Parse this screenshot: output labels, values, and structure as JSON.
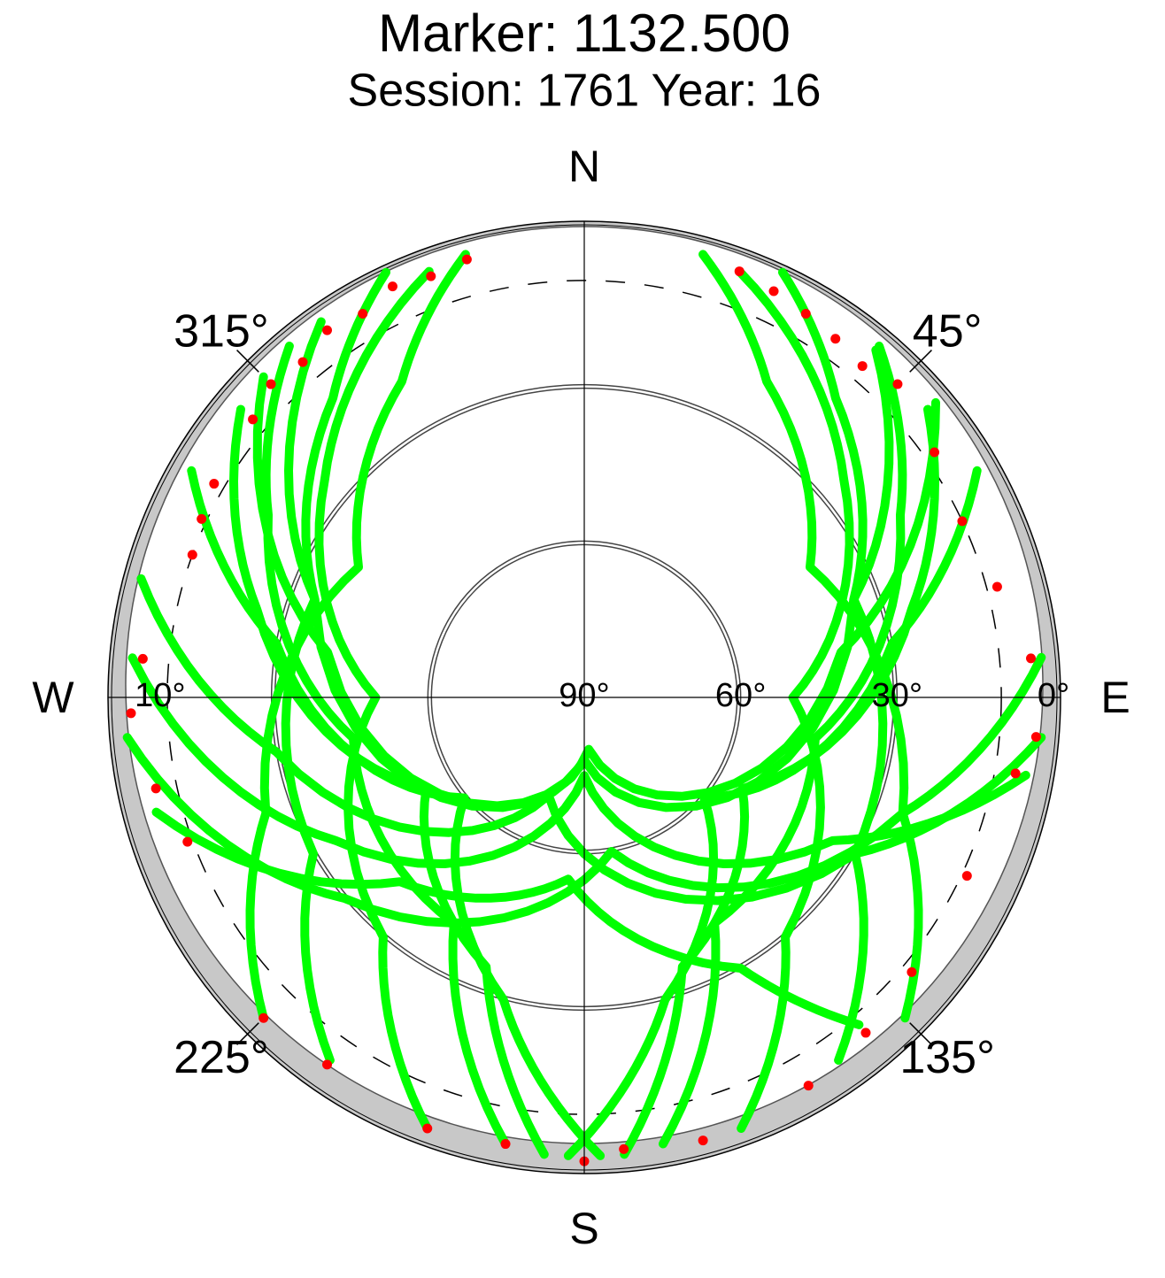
{
  "chart_data": {
    "type": "skyplot",
    "title": "Marker: 1132.500",
    "subtitle": "Session: 1761 Year: 16",
    "rlim": [
      90,
      0
    ],
    "rticks": [
      {
        "value": 0,
        "label": "0°"
      },
      {
        "value": 30,
        "label": "30°"
      },
      {
        "value": 60,
        "label": "60°"
      },
      {
        "value": 90,
        "label": "90°"
      }
    ],
    "cutoff": {
      "value": 10,
      "label": "10°"
    },
    "azticks": [
      {
        "value": 45,
        "label": "45°"
      },
      {
        "value": 135,
        "label": "135°"
      },
      {
        "value": 225,
        "label": "225°"
      },
      {
        "value": 315,
        "label": "315°"
      }
    ],
    "directions": [
      {
        "value": 0,
        "label": "N"
      },
      {
        "value": 90,
        "label": "E"
      },
      {
        "value": 180,
        "label": "S"
      },
      {
        "value": 270,
        "label": "W"
      }
    ],
    "track_color": "#00ff00",
    "series": [
      {
        "azimuth": [
          335,
          320,
          290,
          240,
          215
        ],
        "elevation": [
          0,
          15,
          35,
          30,
          5
        ]
      },
      {
        "azimuth": [
          345,
          330,
          300,
          250,
          225
        ],
        "elevation": [
          2,
          20,
          40,
          25,
          3
        ]
      },
      {
        "azimuth": [
          340,
          310,
          270,
          220,
          200
        ],
        "elevation": [
          3,
          25,
          50,
          30,
          2
        ]
      },
      {
        "azimuth": [
          320,
          300,
          260,
          210,
          190
        ],
        "elevation": [
          2,
          20,
          45,
          40,
          3
        ]
      },
      {
        "azimuth": [
          310,
          285,
          240,
          200,
          185
        ],
        "elevation": [
          4,
          25,
          55,
          35,
          2
        ]
      },
      {
        "azimuth": [
          300,
          280,
          230,
          195,
          178
        ],
        "elevation": [
          3,
          30,
          60,
          30,
          2
        ]
      },
      {
        "azimuth": [
          25,
          40,
          70,
          120,
          145
        ],
        "elevation": [
          0,
          15,
          35,
          30,
          5
        ]
      },
      {
        "azimuth": [
          15,
          30,
          60,
          110,
          135
        ],
        "elevation": [
          2,
          20,
          40,
          25,
          3
        ]
      },
      {
        "azimuth": [
          20,
          50,
          90,
          140,
          160
        ],
        "elevation": [
          3,
          25,
          50,
          30,
          2
        ]
      },
      {
        "azimuth": [
          40,
          60,
          100,
          150,
          170
        ],
        "elevation": [
          2,
          20,
          45,
          40,
          3
        ]
      },
      {
        "azimuth": [
          50,
          75,
          120,
          160,
          175
        ],
        "elevation": [
          4,
          25,
          55,
          35,
          2
        ]
      },
      {
        "azimuth": [
          60,
          80,
          130,
          165,
          182
        ],
        "elevation": [
          3,
          30,
          60,
          30,
          2
        ]
      },
      {
        "azimuth": [
          285,
          260,
          200,
          120,
          95
        ],
        "elevation": [
          2,
          30,
          70,
          30,
          2
        ]
      },
      {
        "azimuth": [
          275,
          240,
          180,
          120,
          100
        ],
        "elevation": [
          3,
          35,
          75,
          35,
          4
        ]
      },
      {
        "azimuth": [
          265,
          230,
          170,
          110,
          85
        ],
        "elevation": [
          2,
          30,
          60,
          25,
          2
        ]
      },
      {
        "azimuth": [
          255,
          225,
          185,
          150,
          140
        ],
        "elevation": [
          5,
          40,
          55,
          30,
          8
        ]
      },
      {
        "azimuth": [
          325,
          290,
          180,
          70,
          40
        ],
        "elevation": [
          2,
          35,
          78,
          35,
          3
        ]
      },
      {
        "azimuth": [
          315,
          280,
          175,
          80,
          50
        ],
        "elevation": [
          3,
          40,
          80,
          40,
          2
        ]
      }
    ],
    "points": {
      "color": "#ff0000",
      "azimuth": [
        345,
        340,
        335,
        330,
        325,
        320,
        315,
        310,
        300,
        295,
        290,
        20,
        25,
        30,
        35,
        40,
        45,
        55,
        65,
        275,
        268,
        258,
        250,
        225,
        215,
        200,
        190,
        180,
        175,
        165,
        150,
        140,
        130,
        115,
        100,
        95,
        85,
        75
      ],
      "elevation": [
        3,
        4,
        3,
        5,
        4,
        6,
        5,
        7,
        8,
        9,
        10,
        3,
        4,
        5,
        6,
        7,
        5,
        8,
        10,
        5,
        3,
        6,
        9,
        3,
        4,
        2,
        3,
        1,
        3,
        2,
        4,
        6,
        8,
        9,
        6,
        3,
        4,
        8
      ]
    }
  }
}
